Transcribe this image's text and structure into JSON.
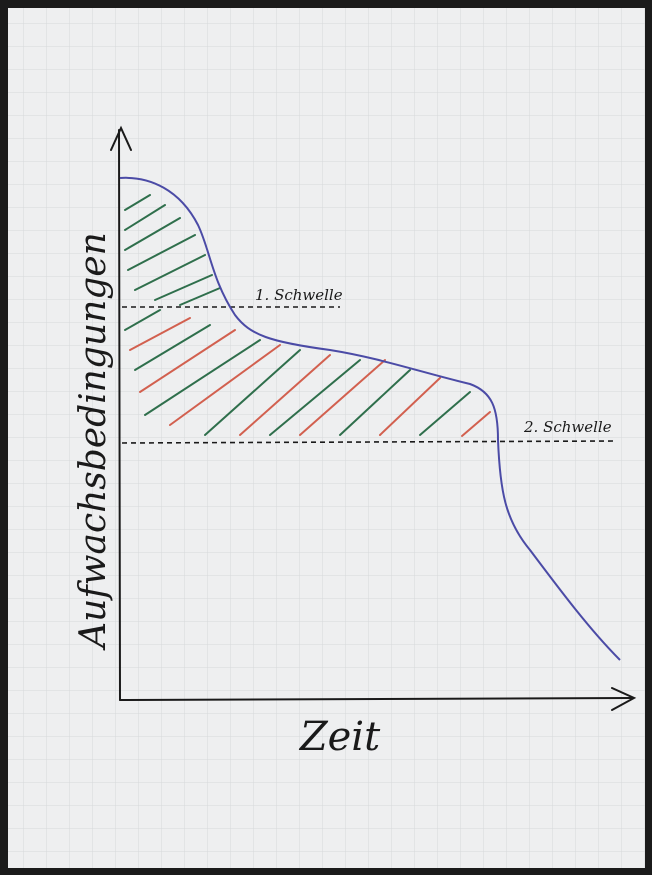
{
  "diagram": {
    "y_axis_label": "Aufwachsbedingungen",
    "x_axis_label": "Zeit",
    "threshold_1": "1. Schwelle",
    "threshold_2": "2. Schwelle"
  }
}
